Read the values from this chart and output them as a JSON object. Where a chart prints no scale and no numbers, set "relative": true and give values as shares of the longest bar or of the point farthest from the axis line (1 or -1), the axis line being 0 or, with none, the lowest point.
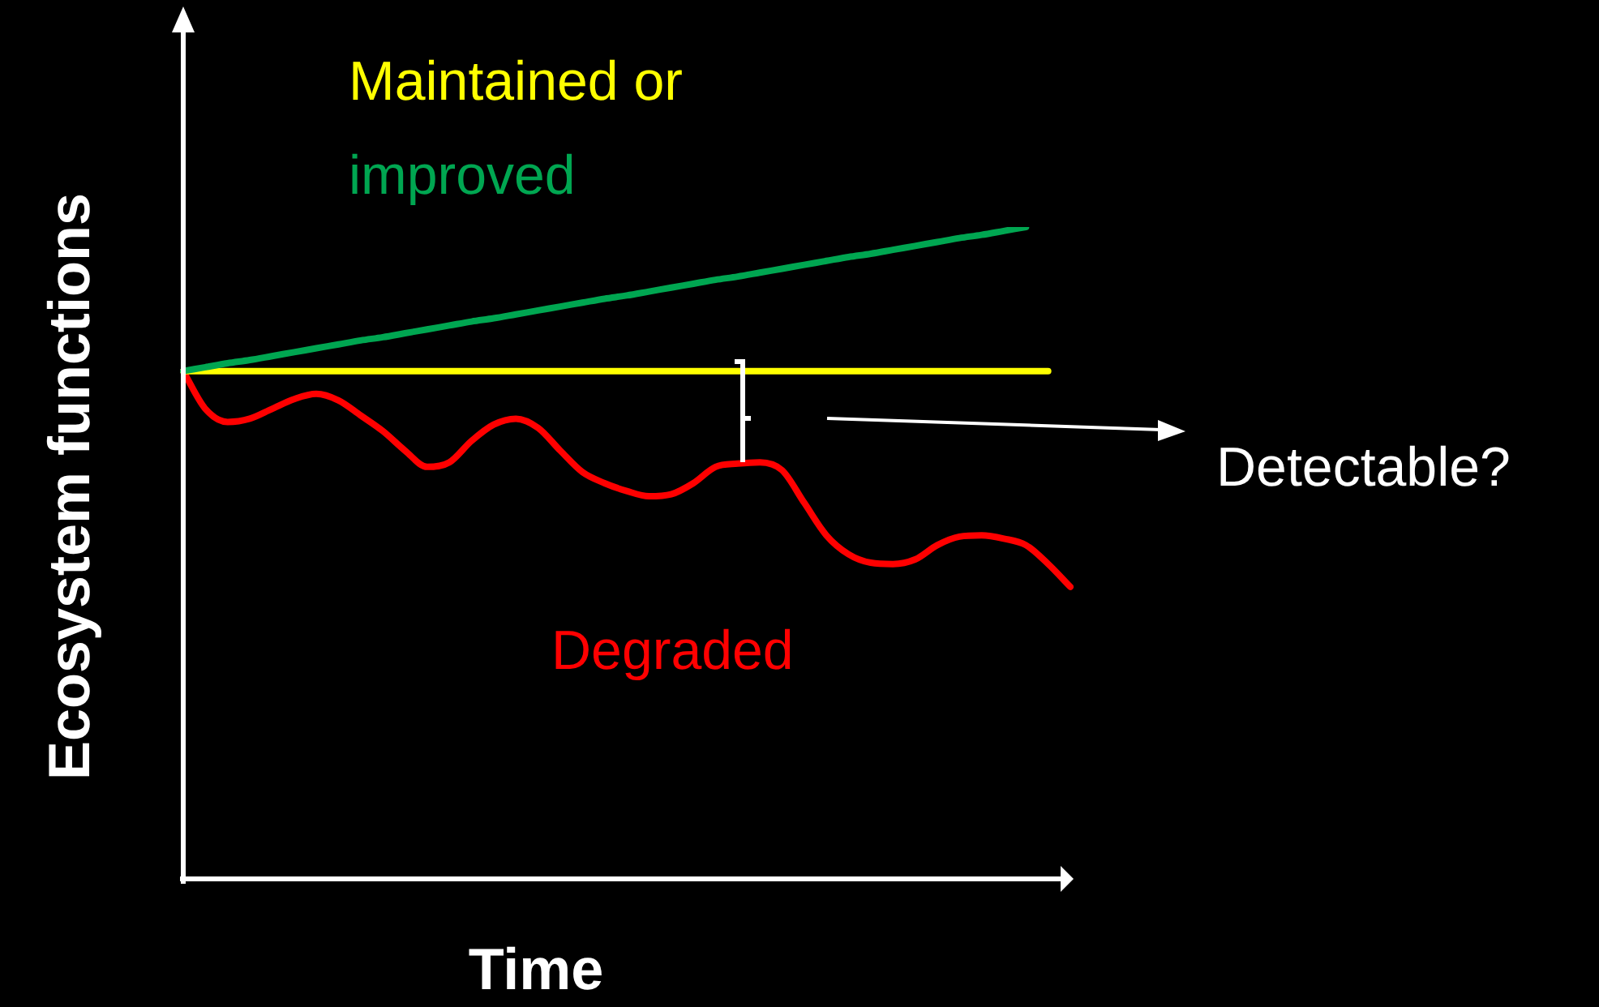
{
  "chart_data": {
    "type": "line",
    "relative": true,
    "xlabel": "Time",
    "ylabel": "Ecosystem functions",
    "categories": [
      null,
      null,
      null,
      null,
      null,
      null,
      null,
      null,
      null,
      null,
      null,
      null,
      null,
      null,
      null,
      null,
      null,
      null,
      null,
      null,
      null,
      null,
      null,
      null,
      null,
      null,
      null,
      null,
      null,
      null,
      null,
      null,
      null,
      null,
      null,
      null,
      null,
      null,
      null,
      null,
      null
    ],
    "series": [
      {
        "name": "improved",
        "color": "#00a651",
        "values": [
          0.779,
          0.785,
          0.791,
          0.796,
          0.802,
          0.808,
          0.814,
          0.82,
          0.826,
          0.831,
          0.837,
          0.843,
          0.849,
          0.855,
          0.86,
          0.866,
          0.872,
          0.878,
          0.884,
          0.89,
          0.895,
          0.901,
          0.907,
          0.913,
          0.919,
          0.924,
          0.93,
          0.936,
          0.942,
          0.948,
          0.954,
          0.959,
          0.965,
          0.971,
          0.977,
          0.983,
          0.988,
          0.994,
          1,
          null,
          null
        ]
      },
      {
        "name": "Maintained or",
        "color": "#ffff00",
        "values": [
          0.779,
          0.779,
          0.779,
          0.779,
          0.779,
          0.779,
          0.779,
          0.779,
          0.779,
          0.779,
          0.779,
          0.779,
          0.779,
          0.779,
          0.779,
          0.779,
          0.779,
          0.779,
          0.779,
          0.779,
          0.779,
          0.779,
          0.779,
          0.779,
          0.779,
          0.779,
          0.779,
          0.779,
          0.779,
          0.779,
          0.779,
          0.779,
          0.779,
          0.779,
          0.779,
          0.779,
          0.779,
          0.779,
          0.779,
          0.779,
          null
        ]
      },
      {
        "name": "Degraded",
        "color": "#ff0000",
        "values": [
          0.779,
          0.721,
          0.701,
          0.706,
          0.721,
          0.736,
          0.744,
          0.734,
          0.711,
          0.687,
          0.657,
          0.632,
          0.639,
          0.672,
          0.697,
          0.706,
          0.692,
          0.657,
          0.624,
          0.607,
          0.595,
          0.587,
          0.59,
          0.607,
          0.632,
          0.637,
          0.639,
          0.627,
          0.577,
          0.527,
          0.498,
          0.485,
          0.483,
          0.49,
          0.512,
          0.525,
          0.527,
          0.522,
          0.512,
          0.483,
          0.448
        ]
      }
    ],
    "annotations": [
      "Detectable?"
    ],
    "marker": "none",
    "line_style": "solid",
    "legend": false,
    "tick_labels": false
  }
}
